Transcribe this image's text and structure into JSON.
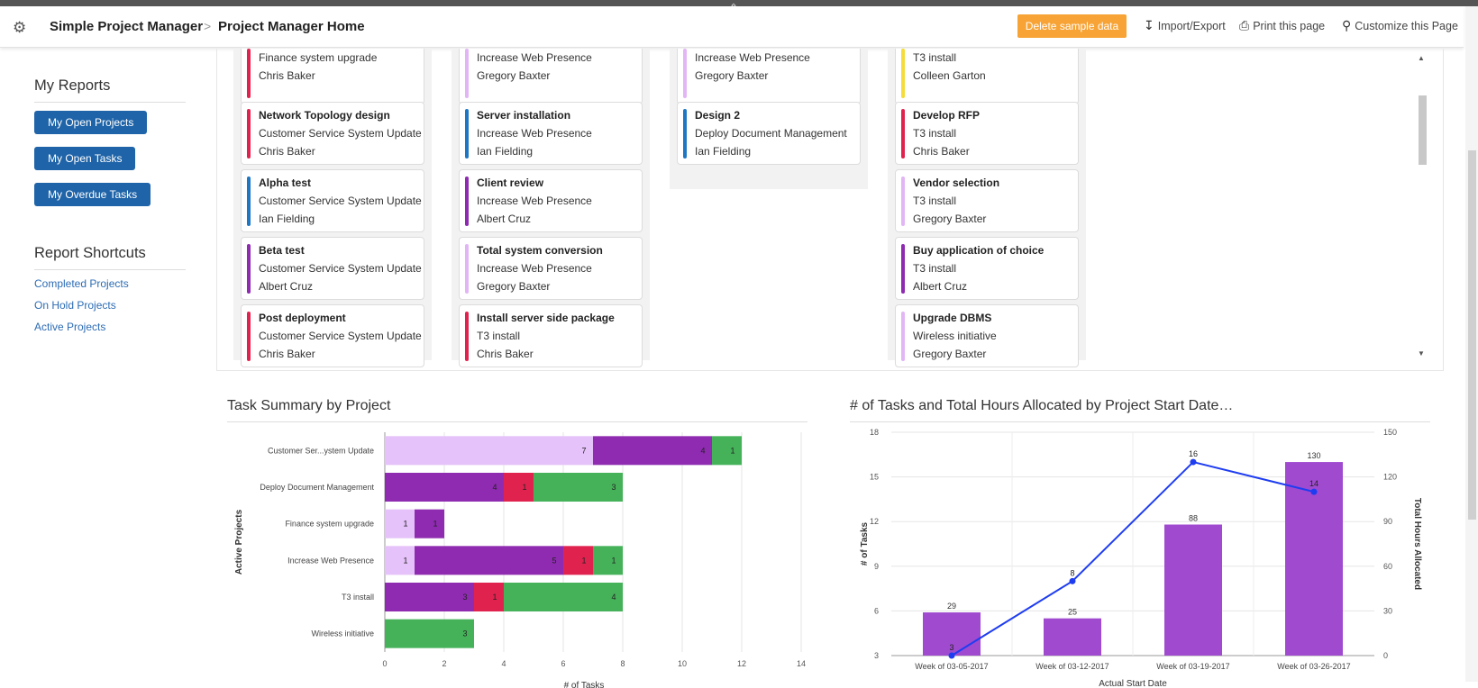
{
  "header": {
    "app_name": "Simple Project Manager",
    "separator": ">",
    "page_name": "Project Manager Home",
    "delete_button": "Delete sample data",
    "import_export": "Import/Export",
    "print": "Print this page",
    "customize": "Customize this Page",
    "collapse_glyph": "⇧"
  },
  "sidebar": {
    "my_reports_title": "My Reports",
    "report_buttons": [
      "My Open Projects",
      "My Open Tasks",
      "My Overdue Tasks"
    ],
    "shortcuts_title": "Report Shortcuts",
    "shortcut_links": [
      "Completed Projects",
      "On Hold Projects",
      "Active Projects"
    ]
  },
  "board": {
    "columns": [
      {
        "cards": [
          {
            "title": "",
            "project": "Finance system upgrade",
            "owner": "Chris Baker",
            "color": "#e0234e"
          },
          {
            "title": "Network Topology design",
            "project": "Customer Service System Update",
            "owner": "Chris Baker",
            "color": "#e0234e"
          },
          {
            "title": "Alpha test",
            "project": "Customer Service System Update",
            "owner": "Ian Fielding",
            "color": "#1e77c2"
          },
          {
            "title": "Beta test",
            "project": "Customer Service System Update",
            "owner": "Albert Cruz",
            "color": "#8e2bb0"
          },
          {
            "title": "Post deployment",
            "project": "Customer Service System Update",
            "owner": "Chris Baker",
            "color": "#e0234e"
          }
        ]
      },
      {
        "cards": [
          {
            "title": "",
            "project": "Increase Web Presence",
            "owner": "Gregory Baxter",
            "color": "#e2b6f5"
          },
          {
            "title": "Server installation",
            "project": "Increase Web Presence",
            "owner": "Ian Fielding",
            "color": "#1e77c2"
          },
          {
            "title": "Client review",
            "project": "Increase Web Presence",
            "owner": "Albert Cruz",
            "color": "#8e2bb0"
          },
          {
            "title": "Total system conversion",
            "project": "Increase Web Presence",
            "owner": "Gregory Baxter",
            "color": "#e2b6f5"
          },
          {
            "title": "Install server side package",
            "project": "T3 install",
            "owner": "Chris Baker",
            "color": "#e0234e"
          }
        ]
      },
      {
        "cards": [
          {
            "title": "",
            "project": "Increase Web Presence",
            "owner": "Gregory Baxter",
            "color": "#e2b6f5"
          },
          {
            "title": "Design 2",
            "project": "Deploy Document Management",
            "owner": "Ian Fielding",
            "color": "#1e77c2"
          }
        ]
      },
      {
        "cards": [
          {
            "title": "",
            "project": "T3 install",
            "owner": "Colleen Garton",
            "color": "#f5dc3a"
          },
          {
            "title": "Develop RFP",
            "project": "T3 install",
            "owner": "Chris Baker",
            "color": "#e0234e"
          },
          {
            "title": "Vendor selection",
            "project": "T3 install",
            "owner": "Gregory Baxter",
            "color": "#e2b6f5"
          },
          {
            "title": "Buy application of choice",
            "project": "T3 install",
            "owner": "Albert Cruz",
            "color": "#8e2bb0"
          },
          {
            "title": "Upgrade DBMS",
            "project": "Wireless initiative",
            "owner": "Gregory Baxter",
            "color": "#e2b6f5"
          }
        ]
      }
    ]
  },
  "task_chart_title": "Task Summary by Project",
  "hours_chart_title": "# of Tasks and Total Hours Allocated by Project Start Date…",
  "chart_data": [
    {
      "type": "bar",
      "orientation": "horizontal",
      "stacked": true,
      "categories": [
        "Customer Ser...ystem Update",
        "Deploy Document Management",
        "Finance system upgrade",
        "Increase Web Presence",
        "T3 install",
        "Wireless initiative"
      ],
      "series": [
        {
          "color": "#e5c2f9",
          "values": [
            7,
            0,
            1,
            1,
            0,
            0
          ]
        },
        {
          "color": "#8e2bb0",
          "values": [
            4,
            4,
            1,
            5,
            3,
            0
          ]
        },
        {
          "color": "#e0234e",
          "values": [
            0,
            1,
            0,
            1,
            1,
            0
          ]
        },
        {
          "color": "#45b25a",
          "values": [
            1,
            3,
            0,
            1,
            4,
            3
          ]
        }
      ],
      "xlabel": "# of Tasks",
      "ylabel": "Active Projects",
      "xlim": [
        0,
        14
      ],
      "xticks": [
        0,
        2,
        4,
        6,
        8,
        10,
        12,
        14
      ],
      "grid": true
    },
    {
      "type": "bar",
      "combo": "bar+line",
      "categories": [
        "Week of 03-05-2017",
        "Week of 03-12-2017",
        "Week of 03-19-2017",
        "Week of 03-26-2017"
      ],
      "bar_series": {
        "axis": "right",
        "color": "#a04ad0",
        "values": [
          29,
          25,
          88,
          130
        ]
      },
      "line_series": {
        "axis": "left",
        "color": "#1f3df0",
        "values": [
          3,
          8,
          16,
          14
        ]
      },
      "xlabel": "Actual Start Date",
      "ylabel_left": "# of Tasks",
      "ylabel_right": "Total Hours Allocated",
      "ylim_left": [
        3,
        18
      ],
      "yticks_left": [
        3,
        6,
        9,
        12,
        15,
        18
      ],
      "ylim_right": [
        0,
        150
      ],
      "yticks_right": [
        0,
        30,
        60,
        90,
        120,
        150
      ],
      "grid": true
    }
  ]
}
